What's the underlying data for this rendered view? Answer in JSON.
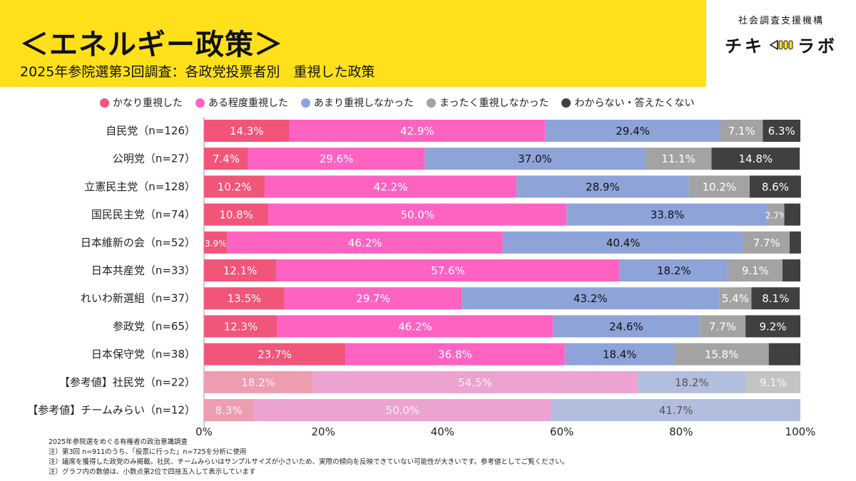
{
  "header": {
    "title": "＜エネルギー政策＞",
    "subtitle": "2025年参院選第3回調査：各政党投票者別　重視した政策"
  },
  "brand": {
    "org": "社会調査支援機構",
    "name_left": "チキ",
    "name_right": "ラボ"
  },
  "colors": {
    "header_bg": "#FFE01B",
    "series": [
      "#F2557A",
      "#FF63C2",
      "#8EA3D8",
      "#A3A3A3",
      "#404040"
    ],
    "series_faded": [
      "#EE9DB1",
      "#EDA3CF",
      "#B3BEDE",
      "#C4C4C4",
      "#7A7A7A"
    ]
  },
  "chart_data": {
    "type": "bar",
    "orientation": "horizontal",
    "stacked": true,
    "percent": true,
    "categories": [
      "自民党（n=126）",
      "公明党（n=27）",
      "立憲民主党（n=128）",
      "国民民主党（n=74）",
      "日本維新の会（n=52）",
      "日本共産党（n=33）",
      "れいわ新選組（n=37）",
      "参政党（n=65）",
      "日本保守党（n=38）",
      "【参考値】社民党（n=22）",
      "【参考値】チームみらい（n=12）"
    ],
    "reference_rows": [
      9,
      10
    ],
    "series": [
      {
        "name": "かなり重視した",
        "values": [
          14.3,
          7.4,
          10.2,
          10.8,
          3.9,
          12.1,
          13.5,
          12.3,
          23.7,
          18.2,
          8.3
        ]
      },
      {
        "name": "ある程度重視した",
        "values": [
          42.9,
          29.6,
          42.2,
          50.0,
          46.2,
          57.6,
          29.7,
          46.2,
          36.8,
          54.5,
          50.0
        ]
      },
      {
        "name": "あまり重視しなかった",
        "values": [
          29.4,
          37.0,
          28.9,
          33.8,
          40.4,
          18.2,
          43.2,
          24.6,
          18.4,
          18.2,
          41.7
        ]
      },
      {
        "name": "まったく重視しなかった",
        "values": [
          7.1,
          11.1,
          10.2,
          2.7,
          7.7,
          9.1,
          5.4,
          7.7,
          15.8,
          9.1,
          0
        ]
      },
      {
        "name": "わからない・答えたくない",
        "values": [
          6.3,
          14.8,
          8.6,
          2.7,
          1.9,
          3.0,
          8.1,
          9.2,
          5.3,
          0,
          0
        ]
      }
    ],
    "data_labels": [
      [
        "14.3%",
        "42.9%",
        "29.4%",
        "7.1%",
        "6.3%"
      ],
      [
        "7.4%",
        "29.6%",
        "37.0%",
        "11.1%",
        "14.8%"
      ],
      [
        "10.2%",
        "42.2%",
        "28.9%",
        "10.2%",
        "8.6%"
      ],
      [
        "10.8%",
        "50.0%",
        "33.8%",
        "2.7%",
        ""
      ],
      [
        "3.9%",
        "46.2%",
        "40.4%",
        "7.7%",
        ""
      ],
      [
        "12.1%",
        "57.6%",
        "18.2%",
        "9.1%",
        ""
      ],
      [
        "13.5%",
        "29.7%",
        "43.2%",
        "5.4%",
        "8.1%"
      ],
      [
        "12.3%",
        "46.2%",
        "24.6%",
        "7.7%",
        "9.2%"
      ],
      [
        "23.7%",
        "36.8%",
        "18.4%",
        "15.8%",
        ""
      ],
      [
        "18.2%",
        "54.5%",
        "18.2%",
        "9.1%",
        ""
      ],
      [
        "8.3%",
        "50.0%",
        "41.7%",
        "",
        ""
      ]
    ],
    "xlim": [
      0,
      100
    ],
    "xticks": [
      "0%",
      "20%",
      "40%",
      "60%",
      "80%",
      "100%"
    ],
    "legend_position": "top"
  },
  "footnotes": [
    "2025年参院選をめぐる有権者の政治意識調査",
    "注）第3回 n=911のうち、「投票に行った」n=725を分析に使用",
    "注）議席を獲得した政党のみ掲載。社民、チームみらいはサンプルサイズが小さいため、実際の傾向を反映できていない可能性が大きいです。参考値としてご覧ください。",
    "注）グラフ内の数値は、小数点第2位で四捨五入して表示しています"
  ]
}
